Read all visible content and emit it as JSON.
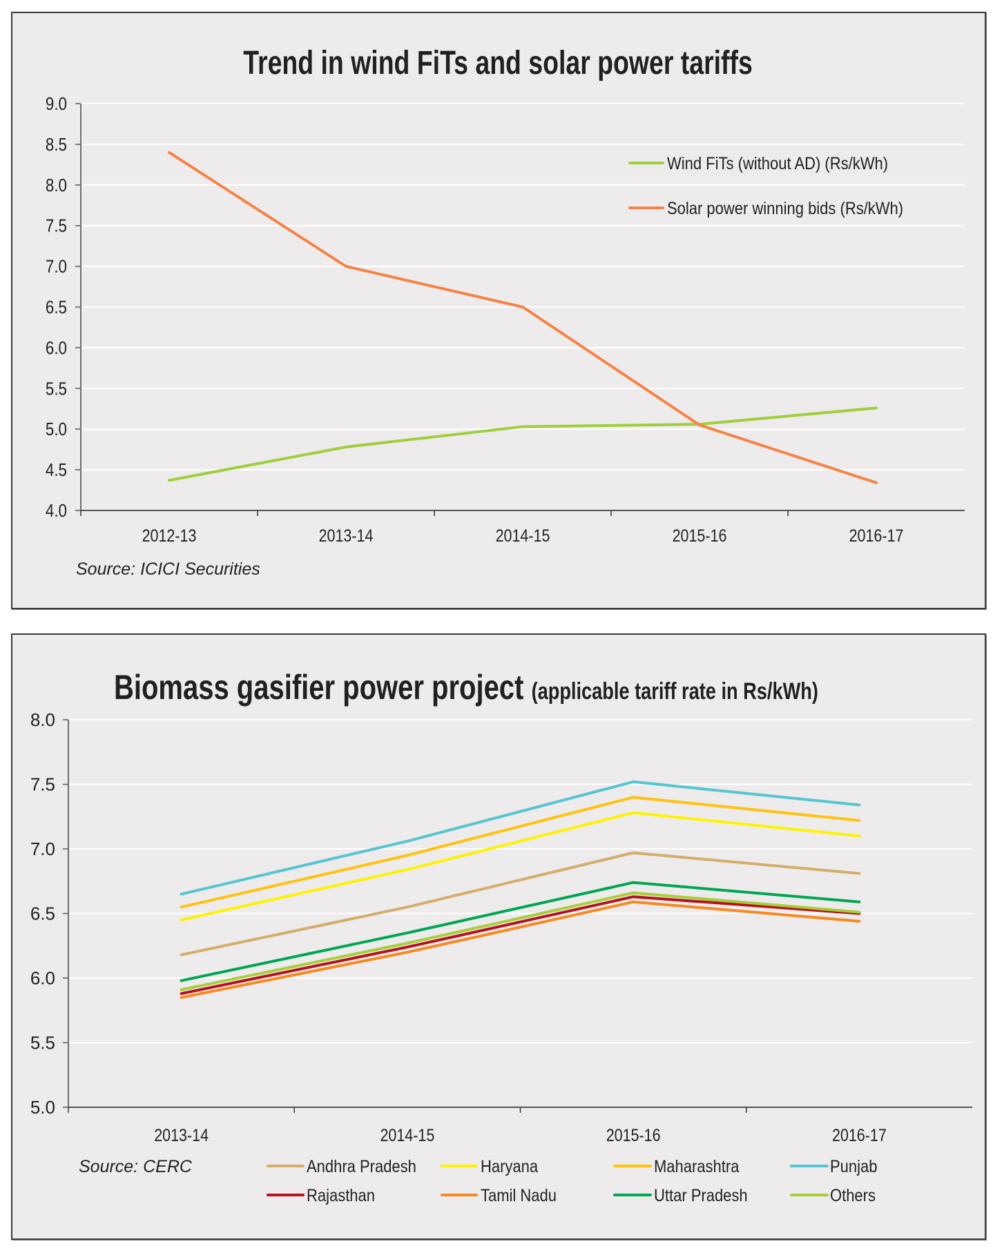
{
  "chart_data": [
    {
      "type": "line",
      "title": "Trend in wind FiTs and solar power tariffs",
      "xlabel": "",
      "ylabel": "",
      "categories": [
        "2012-13",
        "2013-14",
        "2014-15",
        "2015-16",
        "2016-17"
      ],
      "ylim": [
        4.0,
        9.0
      ],
      "yticks": [
        "4.0",
        "4.5",
        "5.0",
        "5.5",
        "6.0",
        "6.5",
        "7.0",
        "7.5",
        "8.0",
        "8.5",
        "9.0"
      ],
      "ytick_values": [
        4.0,
        4.5,
        5.0,
        5.5,
        6.0,
        6.5,
        7.0,
        7.5,
        8.0,
        8.5,
        9.0
      ],
      "grid": true,
      "legend_position": "top-right",
      "source": "Source: ICICI Securities",
      "series": [
        {
          "name": "Wind FiTs (without AD) (Rs/kWh)",
          "color": "#9ecf3a",
          "values": [
            4.37,
            4.78,
            5.03,
            5.06,
            5.26
          ]
        },
        {
          "name": "Solar power winning bids (Rs/kWh)",
          "color": "#f58345",
          "values": [
            8.4,
            7.0,
            6.5,
            5.05,
            4.34
          ]
        }
      ]
    },
    {
      "type": "line",
      "title": "Biomass gasifier power project",
      "subtitle": "(applicable tariff rate in Rs/kWh)",
      "xlabel": "",
      "ylabel": "",
      "categories": [
        "2013-14",
        "2014-15",
        "2015-16",
        "2016-17"
      ],
      "ylim": [
        5.0,
        8.0
      ],
      "yticks": [
        "5.0",
        "5.5",
        "6.0",
        "6.5",
        "7.0",
        "7.5",
        "8.0"
      ],
      "ytick_values": [
        5.0,
        5.5,
        6.0,
        6.5,
        7.0,
        7.5,
        8.0
      ],
      "grid": true,
      "legend_position": "bottom",
      "source": "Source: CERC",
      "series": [
        {
          "name": "Andhra Pradesh",
          "color": "#d4ad6a",
          "values": [
            6.18,
            6.55,
            6.97,
            6.81
          ]
        },
        {
          "name": "Haryana",
          "color": "#fff200",
          "values": [
            6.45,
            6.84,
            7.28,
            7.1
          ]
        },
        {
          "name": "Maharashtra",
          "color": "#ffc20e",
          "values": [
            6.55,
            6.95,
            7.4,
            7.22
          ]
        },
        {
          "name": "Punjab",
          "color": "#56c5d0",
          "values": [
            6.65,
            7.06,
            7.52,
            7.34
          ]
        },
        {
          "name": "Rajasthan",
          "color": "#b5121b",
          "values": [
            5.88,
            6.24,
            6.63,
            6.5
          ]
        },
        {
          "name": "Tamil Nadu",
          "color": "#f7891f",
          "values": [
            5.85,
            6.2,
            6.59,
            6.44
          ]
        },
        {
          "name": "Uttar Pradesh",
          "color": "#00a651",
          "values": [
            5.98,
            6.35,
            6.74,
            6.59
          ]
        },
        {
          "name": "Others",
          "color": "#a6ce39",
          "values": [
            5.91,
            6.27,
            6.66,
            6.51
          ]
        }
      ]
    }
  ]
}
